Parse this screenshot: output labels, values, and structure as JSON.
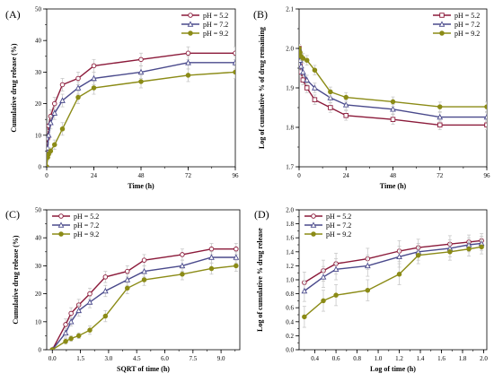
{
  "chart_data": [
    {
      "panel": "(A)",
      "type": "line",
      "xlabel": "Time (h)",
      "ylabel": "Cumulative drug release (%)",
      "xlim": [
        0,
        96
      ],
      "ylim": [
        0,
        50
      ],
      "xticks": [
        0,
        24,
        48,
        72,
        96
      ],
      "yticks": [
        0,
        10,
        20,
        30,
        40,
        50
      ],
      "x_minor": 12,
      "y_minor": 5,
      "legend": "top-right",
      "series": [
        {
          "name": "pH = 5.2",
          "color": "#8b1a3a",
          "marker": "circle",
          "x": [
            0,
            0.5,
            1,
            2,
            4,
            8,
            16,
            24,
            48,
            72,
            96
          ],
          "y": [
            0,
            9,
            13,
            16,
            20,
            26,
            28,
            32,
            34,
            36,
            36
          ],
          "err": [
            0,
            2,
            2,
            2,
            2,
            2,
            2,
            2,
            2,
            2,
            2
          ]
        },
        {
          "name": "pH = 7.2",
          "color": "#4a4a8c",
          "marker": "triangle",
          "x": [
            0,
            0.5,
            1,
            2,
            4,
            8,
            16,
            24,
            48,
            72,
            96
          ],
          "y": [
            0,
            6,
            10,
            14,
            17,
            21,
            25,
            28,
            30,
            33,
            33
          ],
          "err": [
            0,
            1.5,
            1.5,
            2,
            2,
            2,
            2,
            2,
            2,
            2,
            2
          ]
        },
        {
          "name": "pH = 9.2",
          "color": "#8b8b16",
          "marker": "circle-filled",
          "x": [
            0,
            0.5,
            1,
            2,
            4,
            8,
            16,
            24,
            48,
            72,
            96
          ],
          "y": [
            0,
            3,
            4,
            5,
            7,
            12,
            22,
            25,
            27,
            29,
            30
          ],
          "err": [
            0,
            1,
            1,
            1,
            1.5,
            2,
            2,
            2,
            2,
            2,
            2
          ]
        }
      ]
    },
    {
      "panel": "(B)",
      "type": "line",
      "xlabel": "Time (h)",
      "ylabel": "Log of cumulative % of drug remaining",
      "xlim": [
        0,
        96
      ],
      "ylim": [
        1.7,
        2.1
      ],
      "xticks": [
        0,
        24,
        48,
        72,
        96
      ],
      "yticks": [
        1.7,
        1.8,
        1.9,
        2.0,
        2.1
      ],
      "x_minor": 12,
      "y_minor": 0.05,
      "legend": "top-right",
      "series": [
        {
          "name": "pH = 5.2",
          "color": "#8b1a3a",
          "marker": "square",
          "x": [
            0,
            0.5,
            1,
            2,
            4,
            8,
            16,
            24,
            48,
            72,
            96
          ],
          "y": [
            2.0,
            1.96,
            1.94,
            1.92,
            1.9,
            1.87,
            1.85,
            1.83,
            1.82,
            1.806,
            1.806
          ],
          "err": [
            0.01,
            0.01,
            0.01,
            0.012,
            0.012,
            0.012,
            0.012,
            0.012,
            0.012,
            0.012,
            0.012
          ]
        },
        {
          "name": "pH = 7.2",
          "color": "#4a4a8c",
          "marker": "triangle",
          "x": [
            0,
            0.5,
            1,
            2,
            4,
            8,
            16,
            24,
            48,
            72,
            96
          ],
          "y": [
            2.0,
            1.97,
            1.955,
            1.94,
            1.92,
            1.9,
            1.875,
            1.857,
            1.846,
            1.826,
            1.826
          ],
          "err": [
            0.01,
            0.01,
            0.01,
            0.012,
            0.012,
            0.012,
            0.012,
            0.012,
            0.012,
            0.012,
            0.012
          ]
        },
        {
          "name": "pH = 9.2",
          "color": "#8b8b16",
          "marker": "circle-filled",
          "x": [
            0,
            0.5,
            1,
            2,
            4,
            8,
            16,
            24,
            48,
            72,
            96
          ],
          "y": [
            2.0,
            1.99,
            1.98,
            1.975,
            1.97,
            1.945,
            1.89,
            1.876,
            1.865,
            1.852,
            1.852
          ],
          "err": [
            0.01,
            0.01,
            0.01,
            0.012,
            0.012,
            0.012,
            0.012,
            0.012,
            0.012,
            0.012,
            0.012
          ]
        }
      ]
    },
    {
      "panel": "(C)",
      "type": "line",
      "xlabel": "SQRT of time (h)",
      "ylabel": "Cumulative drug release (%)",
      "xlim": [
        -0.3,
        10
      ],
      "ylim": [
        0,
        50
      ],
      "xticks": [
        0.0,
        1.5,
        3.0,
        4.5,
        6.0,
        7.5,
        9.0
      ],
      "ytick_labels": [
        "0",
        "10",
        "20",
        "30",
        "40",
        "50"
      ],
      "yticks": [
        0,
        10,
        20,
        30,
        40,
        50
      ],
      "x_minor": 0.75,
      "y_minor": 5,
      "legend": "top-left",
      "series": [
        {
          "name": "pH = 5.2",
          "color": "#8b1a3a",
          "marker": "circle",
          "x": [
            0,
            0.71,
            1,
            1.41,
            2,
            2.83,
            4,
            4.9,
            6.93,
            8.49,
            9.8
          ],
          "y": [
            0,
            9,
            13,
            16,
            20,
            26,
            28,
            32,
            34,
            36,
            36
          ],
          "err": [
            0,
            2,
            2,
            2,
            2,
            2,
            2,
            2,
            2,
            2,
            2
          ]
        },
        {
          "name": "pH = 7.2",
          "color": "#4a4a8c",
          "marker": "triangle",
          "x": [
            0,
            0.71,
            1,
            1.41,
            2,
            2.83,
            4,
            4.9,
            6.93,
            8.49,
            9.8
          ],
          "y": [
            0,
            6,
            10,
            14,
            17,
            21,
            25,
            28,
            30,
            33,
            33
          ],
          "err": [
            0,
            1.5,
            1.5,
            2,
            2,
            2,
            2,
            2,
            2,
            2,
            2
          ]
        },
        {
          "name": "pH = 9.2",
          "color": "#8b8b16",
          "marker": "circle-filled",
          "x": [
            0,
            0.71,
            1,
            1.41,
            2,
            2.83,
            4,
            4.9,
            6.93,
            8.49,
            9.8
          ],
          "y": [
            0,
            3,
            4,
            5,
            7,
            12,
            22,
            25,
            27,
            29,
            30
          ],
          "err": [
            0,
            1,
            1,
            1,
            1.5,
            2,
            2,
            2,
            2,
            2,
            2
          ]
        }
      ]
    },
    {
      "panel": "(D)",
      "type": "line",
      "xlabel": "Log of time (h)",
      "ylabel": "Log of cumulative % drug release",
      "xlim": [
        0.25,
        2.03
      ],
      "ylim": [
        0,
        2.0
      ],
      "xticks": [
        0.4,
        0.6,
        0.8,
        1.0,
        1.2,
        1.4,
        1.6,
        1.8,
        2.0
      ],
      "yticks": [
        0.0,
        0.2,
        0.4,
        0.6,
        0.8,
        1.0,
        1.2,
        1.4,
        1.6,
        1.8,
        2.0
      ],
      "x_minor": 0.1,
      "y_minor": 0.1,
      "legend": "top-left",
      "series": [
        {
          "name": "pH = 5.2",
          "color": "#8b1a3a",
          "marker": "circle",
          "x": [
            0.3,
            0.48,
            0.6,
            0.9,
            1.2,
            1.38,
            1.68,
            1.86,
            1.98
          ],
          "y": [
            0.96,
            1.13,
            1.23,
            1.3,
            1.41,
            1.46,
            1.51,
            1.54,
            1.56
          ],
          "err": [
            0.15,
            0.15,
            0.15,
            0.15,
            0.15,
            0.12,
            0.12,
            0.1,
            0.1
          ]
        },
        {
          "name": "pH = 7.2",
          "color": "#4a4a8c",
          "marker": "triangle",
          "x": [
            0.3,
            0.48,
            0.6,
            0.9,
            1.2,
            1.38,
            1.68,
            1.86,
            1.98
          ],
          "y": [
            0.84,
            1.04,
            1.15,
            1.2,
            1.33,
            1.4,
            1.45,
            1.5,
            1.52
          ],
          "err": [
            0.15,
            0.15,
            0.15,
            0.15,
            0.15,
            0.12,
            0.12,
            0.1,
            0.1
          ]
        },
        {
          "name": "pH = 9.2",
          "color": "#8b8b16",
          "marker": "circle-filled",
          "x": [
            0.3,
            0.48,
            0.6,
            0.9,
            1.2,
            1.38,
            1.68,
            1.86,
            1.98
          ],
          "y": [
            0.47,
            0.7,
            0.78,
            0.85,
            1.08,
            1.35,
            1.4,
            1.44,
            1.47
          ],
          "err": [
            0.15,
            0.15,
            0.15,
            0.15,
            0.15,
            0.12,
            0.12,
            0.1,
            0.1
          ]
        }
      ]
    }
  ]
}
